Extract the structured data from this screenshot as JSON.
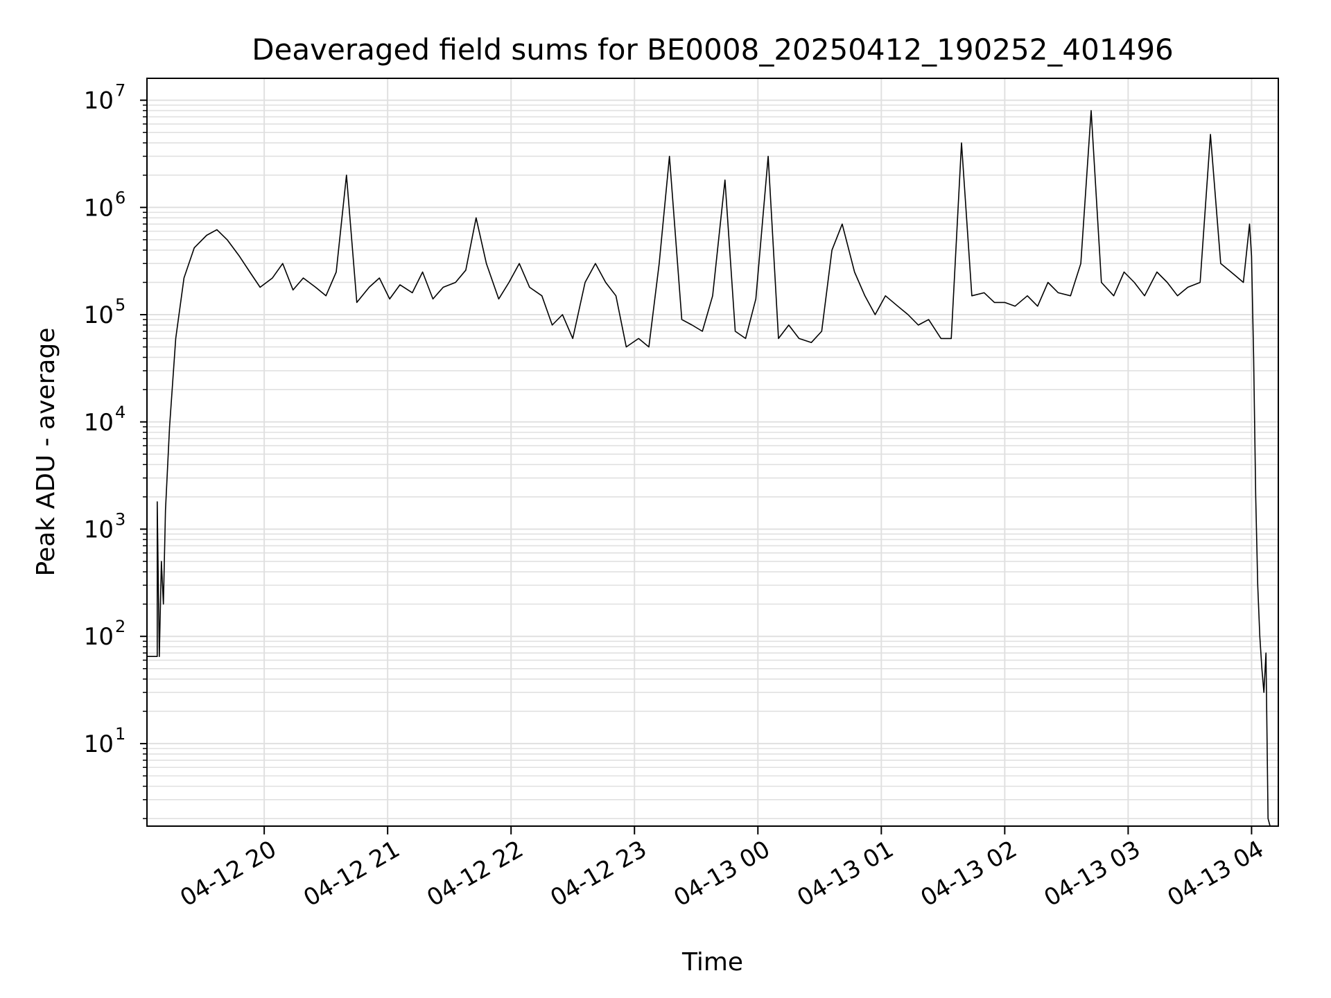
{
  "chart_data": {
    "type": "line",
    "title": "Deaveraged field sums for BE0008_20250412_190252_401496",
    "xlabel": "Time",
    "ylabel": "Peak ADU - average",
    "yscale": "log",
    "ylim": [
      1.7,
      16000000
    ],
    "xlim": [
      "2025-04-12 19:03",
      "2025-04-13 04:13"
    ],
    "grid": true,
    "x_ticks": [
      {
        "t": "2025-04-12 20:00",
        "label": "04-12 20"
      },
      {
        "t": "2025-04-12 21:00",
        "label": "04-12 21"
      },
      {
        "t": "2025-04-12 22:00",
        "label": "04-12 22"
      },
      {
        "t": "2025-04-12 23:00",
        "label": "04-12 23"
      },
      {
        "t": "2025-04-13 00:00",
        "label": "04-13 00"
      },
      {
        "t": "2025-04-13 01:00",
        "label": "04-13 01"
      },
      {
        "t": "2025-04-13 02:00",
        "label": "04-13 02"
      },
      {
        "t": "2025-04-13 03:00",
        "label": "04-13 03"
      },
      {
        "t": "2025-04-13 04:00",
        "label": "04-13 04"
      }
    ],
    "y_ticks": [
      {
        "v": 10,
        "base": "10",
        "exp": "1"
      },
      {
        "v": 100,
        "base": "10",
        "exp": "2"
      },
      {
        "v": 1000,
        "base": "10",
        "exp": "3"
      },
      {
        "v": 10000,
        "base": "10",
        "exp": "4"
      },
      {
        "v": 100000,
        "base": "10",
        "exp": "5"
      },
      {
        "v": 1000000,
        "base": "10",
        "exp": "6"
      },
      {
        "v": 10000000,
        "base": "10",
        "exp": "7"
      }
    ],
    "series_color": "#000000",
    "grid_color": "#e0e0e0",
    "series": [
      {
        "points": [
          [
            "2025-04-12 19:03",
            65
          ],
          [
            "2025-04-12 19:08",
            65
          ],
          [
            "2025-04-12 19:08",
            1800
          ],
          [
            "2025-04-12 19:09",
            65
          ],
          [
            "2025-04-12 19:10",
            500
          ],
          [
            "2025-04-12 19:11",
            200
          ],
          [
            "2025-04-12 19:12",
            1500
          ],
          [
            "2025-04-12 19:14",
            9000
          ],
          [
            "2025-04-12 19:17",
            60000
          ],
          [
            "2025-04-12 19:21",
            220000
          ],
          [
            "2025-04-12 19:26",
            420000
          ],
          [
            "2025-04-12 19:32",
            550000
          ],
          [
            "2025-04-12 19:37",
            620000
          ],
          [
            "2025-04-12 19:42",
            500000
          ],
          [
            "2025-04-12 19:48",
            350000
          ],
          [
            "2025-04-12 19:53",
            250000
          ],
          [
            "2025-04-12 19:58",
            180000
          ],
          [
            "2025-04-12 20:04",
            220000
          ],
          [
            "2025-04-12 20:09",
            300000
          ],
          [
            "2025-04-12 20:14",
            170000
          ],
          [
            "2025-04-12 20:19",
            220000
          ],
          [
            "2025-04-12 20:25",
            180000
          ],
          [
            "2025-04-12 20:30",
            150000
          ],
          [
            "2025-04-12 20:35",
            250000
          ],
          [
            "2025-04-12 20:40",
            2000000
          ],
          [
            "2025-04-12 20:45",
            130000
          ],
          [
            "2025-04-12 20:51",
            180000
          ],
          [
            "2025-04-12 20:56",
            220000
          ],
          [
            "2025-04-12 21:01",
            140000
          ],
          [
            "2025-04-12 21:06",
            190000
          ],
          [
            "2025-04-12 21:12",
            160000
          ],
          [
            "2025-04-12 21:17",
            250000
          ],
          [
            "2025-04-12 21:22",
            140000
          ],
          [
            "2025-04-12 21:27",
            180000
          ],
          [
            "2025-04-12 21:33",
            200000
          ],
          [
            "2025-04-12 21:38",
            260000
          ],
          [
            "2025-04-12 21:43",
            800000
          ],
          [
            "2025-04-12 21:48",
            300000
          ],
          [
            "2025-04-12 21:54",
            140000
          ],
          [
            "2025-04-12 21:59",
            200000
          ],
          [
            "2025-04-12 22:04",
            300000
          ],
          [
            "2025-04-12 22:09",
            180000
          ],
          [
            "2025-04-12 22:15",
            150000
          ],
          [
            "2025-04-12 22:20",
            80000
          ],
          [
            "2025-04-12 22:25",
            100000
          ],
          [
            "2025-04-12 22:30",
            60000
          ],
          [
            "2025-04-12 22:36",
            200000
          ],
          [
            "2025-04-12 22:41",
            300000
          ],
          [
            "2025-04-12 22:46",
            200000
          ],
          [
            "2025-04-12 22:51",
            150000
          ],
          [
            "2025-04-12 22:56",
            50000
          ],
          [
            "2025-04-12 23:02",
            60000
          ],
          [
            "2025-04-12 23:07",
            50000
          ],
          [
            "2025-04-12 23:12",
            300000
          ],
          [
            "2025-04-12 23:17",
            3000000
          ],
          [
            "2025-04-12 23:23",
            90000
          ],
          [
            "2025-04-12 23:28",
            80000
          ],
          [
            "2025-04-12 23:33",
            70000
          ],
          [
            "2025-04-12 23:38",
            150000
          ],
          [
            "2025-04-12 23:44",
            1800000
          ],
          [
            "2025-04-12 23:49",
            70000
          ],
          [
            "2025-04-12 23:54",
            60000
          ],
          [
            "2025-04-12 23:59",
            140000
          ],
          [
            "2025-04-13 00:05",
            3000000
          ],
          [
            "2025-04-13 00:10",
            60000
          ],
          [
            "2025-04-13 00:15",
            80000
          ],
          [
            "2025-04-13 00:20",
            60000
          ],
          [
            "2025-04-13 00:26",
            55000
          ],
          [
            "2025-04-13 00:31",
            70000
          ],
          [
            "2025-04-13 00:36",
            400000
          ],
          [
            "2025-04-13 00:41",
            700000
          ],
          [
            "2025-04-13 00:47",
            250000
          ],
          [
            "2025-04-13 00:52",
            150000
          ],
          [
            "2025-04-13 00:57",
            100000
          ],
          [
            "2025-04-13 01:02",
            150000
          ],
          [
            "2025-04-13 01:08",
            120000
          ],
          [
            "2025-04-13 01:13",
            100000
          ],
          [
            "2025-04-13 01:18",
            80000
          ],
          [
            "2025-04-13 01:23",
            90000
          ],
          [
            "2025-04-13 01:29",
            60000
          ],
          [
            "2025-04-13 01:34",
            60000
          ],
          [
            "2025-04-13 01:39",
            4000000
          ],
          [
            "2025-04-13 01:44",
            150000
          ],
          [
            "2025-04-13 01:50",
            160000
          ],
          [
            "2025-04-13 01:55",
            130000
          ],
          [
            "2025-04-13 02:00",
            130000
          ],
          [
            "2025-04-13 02:05",
            120000
          ],
          [
            "2025-04-13 02:11",
            150000
          ],
          [
            "2025-04-13 02:16",
            120000
          ],
          [
            "2025-04-13 02:21",
            200000
          ],
          [
            "2025-04-13 02:26",
            160000
          ],
          [
            "2025-04-13 02:32",
            150000
          ],
          [
            "2025-04-13 02:37",
            300000
          ],
          [
            "2025-04-13 02:42",
            8000000
          ],
          [
            "2025-04-13 02:47",
            200000
          ],
          [
            "2025-04-13 02:53",
            150000
          ],
          [
            "2025-04-13 02:58",
            250000
          ],
          [
            "2025-04-13 03:03",
            200000
          ],
          [
            "2025-04-13 03:08",
            150000
          ],
          [
            "2025-04-13 03:14",
            250000
          ],
          [
            "2025-04-13 03:19",
            200000
          ],
          [
            "2025-04-13 03:24",
            150000
          ],
          [
            "2025-04-13 03:29",
            180000
          ],
          [
            "2025-04-13 03:35",
            200000
          ],
          [
            "2025-04-13 03:40",
            4800000
          ],
          [
            "2025-04-13 03:45",
            300000
          ],
          [
            "2025-04-13 03:50",
            250000
          ],
          [
            "2025-04-13 03:56",
            200000
          ],
          [
            "2025-04-13 03:59",
            700000
          ],
          [
            "2025-04-13 04:00",
            350000
          ],
          [
            "2025-04-13 04:01",
            40000
          ],
          [
            "2025-04-13 04:02",
            2000
          ],
          [
            "2025-04-13 04:03",
            300
          ],
          [
            "2025-04-13 04:04",
            100
          ],
          [
            "2025-04-13 04:05",
            50
          ],
          [
            "2025-04-13 04:06",
            30
          ],
          [
            "2025-04-13 04:07",
            70
          ],
          [
            "2025-04-13 04:08",
            2
          ],
          [
            "2025-04-13 04:09",
            1.7
          ]
        ]
      }
    ]
  }
}
